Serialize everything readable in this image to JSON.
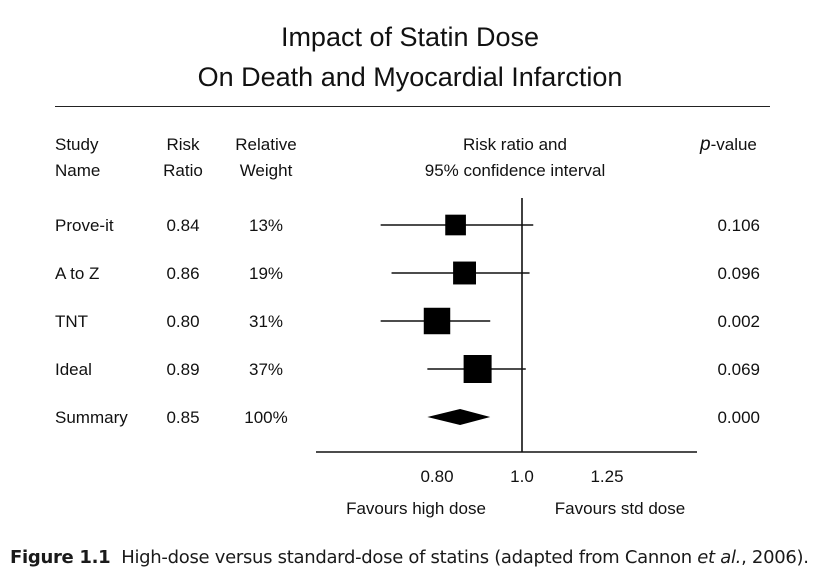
{
  "title_line1": "Impact of Statin Dose",
  "title_line2": "On Death and Myocardial Infarction",
  "headers": {
    "study": [
      "Study",
      "Name"
    ],
    "risk": [
      "Risk",
      "Ratio"
    ],
    "weight": [
      "Relative",
      "Weight"
    ],
    "ci": [
      "Risk ratio and",
      "95% confidence interval"
    ],
    "pvalue_italic": "p",
    "pvalue_rest": "-value"
  },
  "rows": [
    {
      "name": "Prove-it",
      "rr": "0.84",
      "weight": "13%",
      "p": "0.106"
    },
    {
      "name": "A to Z",
      "rr": "0.86",
      "weight": "19%",
      "p": "0.096"
    },
    {
      "name": "TNT",
      "rr": "0.80",
      "weight": "31%",
      "p": "0.002"
    },
    {
      "name": "Ideal",
      "rr": "0.89",
      "weight": "37%",
      "p": "0.069"
    },
    {
      "name": "Summary",
      "rr": "0.85",
      "weight": "100%",
      "p": "0.000"
    }
  ],
  "chart_data": {
    "type": "forest",
    "studies": [
      {
        "name": "Prove-it",
        "estimate": 0.84,
        "lower": 0.69,
        "upper": 1.03,
        "weight": 13
      },
      {
        "name": "A to Z",
        "estimate": 0.86,
        "lower": 0.71,
        "upper": 1.02,
        "weight": 19
      },
      {
        "name": "TNT",
        "estimate": 0.8,
        "lower": 0.69,
        "upper": 0.92,
        "weight": 31
      },
      {
        "name": "Ideal",
        "estimate": 0.89,
        "lower": 0.78,
        "upper": 1.01,
        "weight": 37
      }
    ],
    "summary": {
      "name": "Summary",
      "estimate": 0.85,
      "lower": 0.78,
      "upper": 0.92
    },
    "x_ticks": [
      {
        "value": 0.8,
        "label": "0.80"
      },
      {
        "value": 1.0,
        "label": "1.0"
      },
      {
        "value": 1.25,
        "label": "1.25"
      }
    ],
    "reference_line": 1.0,
    "xlim": [
      0.58,
      1.55
    ],
    "x_scale": "log",
    "xlabel_left": "Favours high dose",
    "xlabel_right": "Favours std dose"
  },
  "caption": {
    "label": "Figure 1.1",
    "text_before": "High-dose versus standard-dose of statins (adapted from Cannon",
    "italic": "et al.",
    "text_after": ", 2006)."
  }
}
